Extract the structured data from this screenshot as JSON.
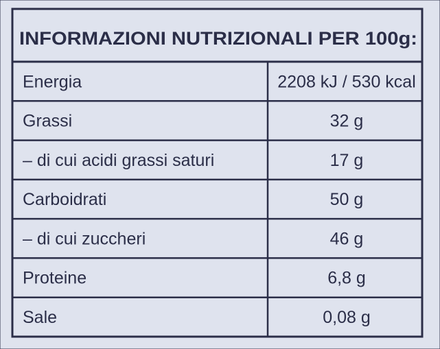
{
  "header": {
    "title": "INFORMAZIONI NUTRIZIONALI PER 100g:"
  },
  "table": {
    "rows": [
      [
        "Energia",
        "2208 kJ / 530 kcal"
      ],
      [
        "Grassi",
        "32 g"
      ],
      [
        "– di cui acidi grassi saturi",
        "17 g"
      ],
      [
        "Carboidrati",
        "50 g"
      ],
      [
        "– di cui zuccheri",
        "46 g"
      ],
      [
        "Proteine",
        "6,8 g"
      ],
      [
        "Sale",
        "0,08 g"
      ]
    ]
  }
}
